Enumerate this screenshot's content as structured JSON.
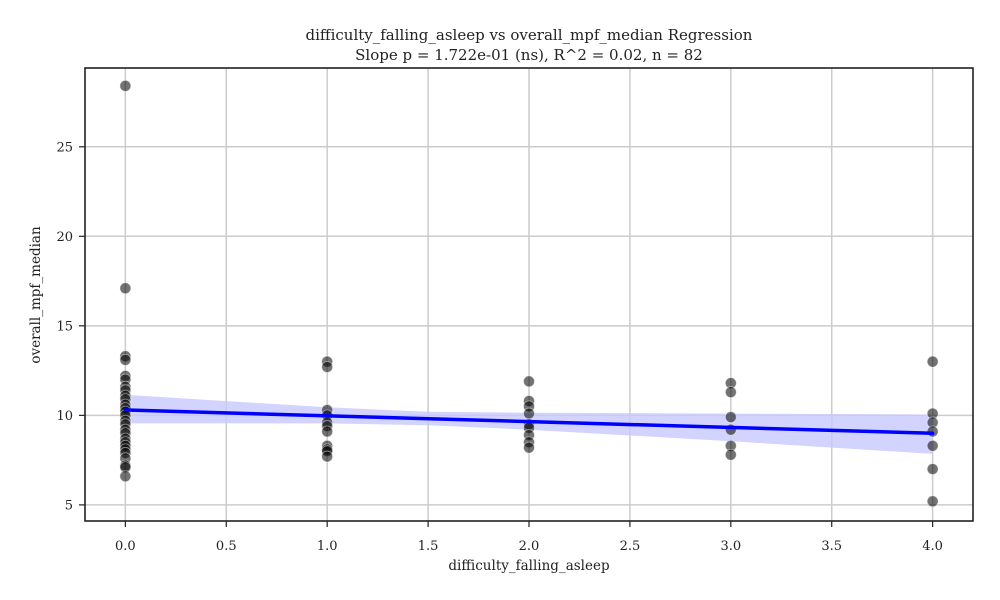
{
  "chart_data": {
    "type": "scatter",
    "title": "difficulty_falling_asleep vs overall_mpf_median Regression",
    "subtitle": "Slope p = 1.722e-01 (ns), R^2 = 0.02, n = 82",
    "xlabel": "difficulty_falling_asleep",
    "ylabel": "overall_mpf_median",
    "xlim": [
      -0.2,
      4.2
    ],
    "ylim": [
      4.1,
      29.4
    ],
    "xticks": [
      0.0,
      0.5,
      1.0,
      1.5,
      2.0,
      2.5,
      3.0,
      3.5,
      4.0
    ],
    "xtick_labels": [
      "0.0",
      "0.5",
      "1.0",
      "1.5",
      "2.0",
      "2.5",
      "3.0",
      "3.5",
      "4.0"
    ],
    "yticks": [
      5,
      10,
      15,
      20,
      25
    ],
    "ytick_labels": [
      "5",
      "10",
      "15",
      "20",
      "25"
    ],
    "grid": true,
    "colors": {
      "points": "#555555",
      "regression_line": "#0000ff",
      "confidence_band": "#c8c8ff"
    },
    "points": [
      {
        "x": 0,
        "y": 28.4
      },
      {
        "x": 0,
        "y": 17.1
      },
      {
        "x": 0,
        "y": 13.3
      },
      {
        "x": 0,
        "y": 13.1
      },
      {
        "x": 0,
        "y": 12.2
      },
      {
        "x": 0,
        "y": 12.0
      },
      {
        "x": 0,
        "y": 11.6
      },
      {
        "x": 0,
        "y": 11.4
      },
      {
        "x": 0,
        "y": 11.1
      },
      {
        "x": 0,
        "y": 10.9
      },
      {
        "x": 0,
        "y": 10.6
      },
      {
        "x": 0,
        "y": 10.4
      },
      {
        "x": 0,
        "y": 10.2
      },
      {
        "x": 0,
        "y": 10.0
      },
      {
        "x": 0,
        "y": 9.7
      },
      {
        "x": 0,
        "y": 9.5
      },
      {
        "x": 0,
        "y": 9.2
      },
      {
        "x": 0,
        "y": 9.0
      },
      {
        "x": 0,
        "y": 8.7
      },
      {
        "x": 0,
        "y": 8.5
      },
      {
        "x": 0,
        "y": 8.3
      },
      {
        "x": 0,
        "y": 8.1
      },
      {
        "x": 0,
        "y": 7.9
      },
      {
        "x": 0,
        "y": 7.6
      },
      {
        "x": 0,
        "y": 7.2
      },
      {
        "x": 0,
        "y": 7.1
      },
      {
        "x": 0,
        "y": 6.6
      },
      {
        "x": 1,
        "y": 13.0
      },
      {
        "x": 1,
        "y": 12.7
      },
      {
        "x": 1,
        "y": 10.3
      },
      {
        "x": 1,
        "y": 10.0
      },
      {
        "x": 1,
        "y": 9.6
      },
      {
        "x": 1,
        "y": 9.4
      },
      {
        "x": 1,
        "y": 9.1
      },
      {
        "x": 1,
        "y": 8.3
      },
      {
        "x": 1,
        "y": 8.1
      },
      {
        "x": 1,
        "y": 8.0
      },
      {
        "x": 1,
        "y": 7.7
      },
      {
        "x": 2,
        "y": 11.9
      },
      {
        "x": 2,
        "y": 10.8
      },
      {
        "x": 2,
        "y": 10.5
      },
      {
        "x": 2,
        "y": 10.1
      },
      {
        "x": 2,
        "y": 9.5
      },
      {
        "x": 2,
        "y": 9.3
      },
      {
        "x": 2,
        "y": 8.9
      },
      {
        "x": 2,
        "y": 8.5
      },
      {
        "x": 2,
        "y": 8.2
      },
      {
        "x": 3,
        "y": 11.8
      },
      {
        "x": 3,
        "y": 11.3
      },
      {
        "x": 3,
        "y": 9.9
      },
      {
        "x": 3,
        "y": 9.2
      },
      {
        "x": 3,
        "y": 8.3
      },
      {
        "x": 3,
        "y": 7.8
      },
      {
        "x": 4,
        "y": 13.0
      },
      {
        "x": 4,
        "y": 10.1
      },
      {
        "x": 4,
        "y": 9.6
      },
      {
        "x": 4,
        "y": 9.1
      },
      {
        "x": 4,
        "y": 8.3
      },
      {
        "x": 4,
        "y": 7.0
      },
      {
        "x": 4,
        "y": 5.2
      }
    ],
    "regression_line": [
      {
        "x": 0,
        "y": 10.3
      },
      {
        "x": 4,
        "y": 9.0
      }
    ],
    "confidence_band": [
      {
        "x": 0,
        "low": 9.55,
        "high": 11.15
      },
      {
        "x": 1,
        "low": 9.55,
        "high": 10.45
      },
      {
        "x": 1.5,
        "low": 9.45,
        "high": 10.2
      },
      {
        "x": 2,
        "low": 9.2,
        "high": 10.15
      },
      {
        "x": 3,
        "low": 8.55,
        "high": 10.1
      },
      {
        "x": 4,
        "low": 7.85,
        "high": 10.05
      }
    ]
  }
}
